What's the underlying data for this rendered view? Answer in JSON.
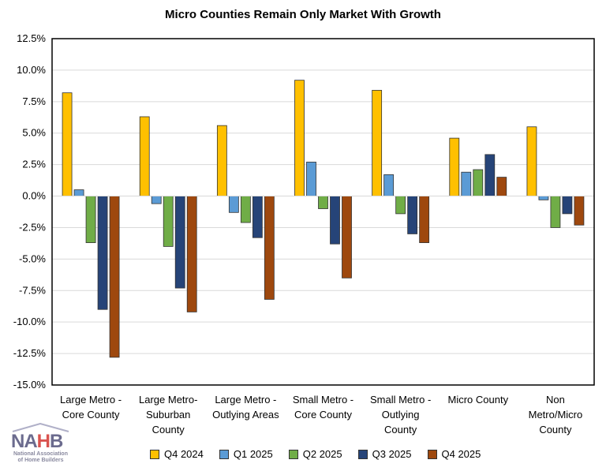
{
  "chart_data": {
    "type": "bar",
    "title": "Micro Counties Remain Only Market With Growth",
    "categories": [
      [
        "Large Metro -",
        "Core County"
      ],
      [
        "Large Metro-",
        "Suburban",
        "County"
      ],
      [
        "Large Metro -",
        "Outlying Areas"
      ],
      [
        "Small Metro -",
        "Core County"
      ],
      [
        "Small Metro -",
        "Outlying",
        "County"
      ],
      [
        "Micro County"
      ],
      [
        "Non",
        "Metro/Micro",
        "County"
      ]
    ],
    "series": [
      {
        "name": "Q4 2024",
        "color": "#FFC000",
        "values": [
          8.2,
          6.3,
          5.6,
          9.2,
          8.4,
          4.6,
          5.5
        ]
      },
      {
        "name": "Q1 2025",
        "color": "#5B9BD5",
        "values": [
          0.5,
          -0.6,
          -1.3,
          2.7,
          1.7,
          1.9,
          -0.3
        ]
      },
      {
        "name": "Q2 2025",
        "color": "#70AD47",
        "values": [
          -3.7,
          -4.0,
          -2.1,
          -1.0,
          -1.4,
          2.1,
          -2.5
        ]
      },
      {
        "name": "Q3 2025",
        "color": "#264478",
        "values": [
          -9.0,
          -7.3,
          -3.3,
          -3.8,
          -3.0,
          3.3,
          -1.4
        ]
      },
      {
        "name": "Q4 2025",
        "color": "#9E480E",
        "values": [
          -12.8,
          -9.2,
          -8.2,
          -6.5,
          -3.7,
          1.5,
          -2.3
        ]
      }
    ],
    "ylim": [
      -15,
      12.5
    ],
    "yticks": [
      "12.5%",
      "10.0%",
      "7.5%",
      "5.0%",
      "2.5%",
      "0.0%",
      "-2.5%",
      "-5.0%",
      "-7.5%",
      "-10.0%",
      "-12.5%",
      "-15.0%"
    ],
    "grid": true,
    "legend": "bottom"
  },
  "logo": {
    "text": "NAHB",
    "subtitle": "National Association of Home Builders"
  }
}
